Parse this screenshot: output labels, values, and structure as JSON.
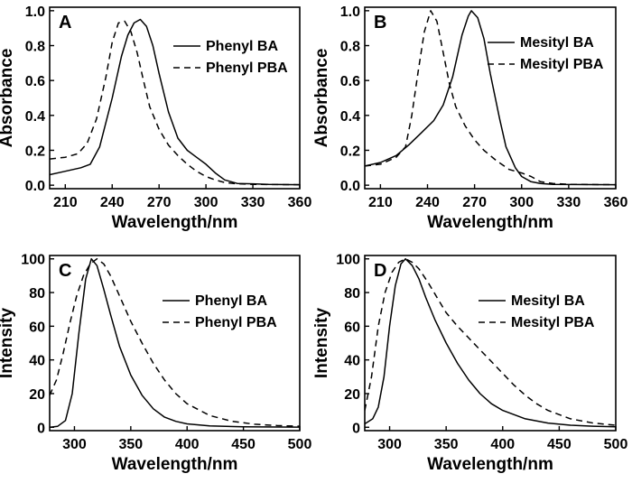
{
  "chart_data": [
    {
      "type": "line",
      "panel_label": "A",
      "xlabel": "Wavelength/nm",
      "ylabel": "Absorbance",
      "xlim": [
        200,
        360
      ],
      "ylim": [
        -0.02,
        1.02
      ],
      "xticks": [
        210,
        240,
        270,
        300,
        330,
        360
      ],
      "yticks": [
        0.0,
        0.2,
        0.4,
        0.6,
        0.8,
        1.0
      ],
      "ytick_labels": [
        "0.0",
        "0.2",
        "0.4",
        "0.6",
        "0.8",
        "1.0"
      ],
      "legend_position": "top-right",
      "series": [
        {
          "name": "Phenyl BA",
          "dash": "solid",
          "points": [
            [
              200,
              0.06
            ],
            [
              210,
              0.08
            ],
            [
              220,
              0.1
            ],
            [
              226,
              0.12
            ],
            [
              232,
              0.22
            ],
            [
              240,
              0.5
            ],
            [
              246,
              0.74
            ],
            [
              250,
              0.86
            ],
            [
              254,
              0.93
            ],
            [
              258,
              0.95
            ],
            [
              262,
              0.91
            ],
            [
              266,
              0.8
            ],
            [
              270,
              0.64
            ],
            [
              276,
              0.42
            ],
            [
              282,
              0.27
            ],
            [
              288,
              0.2
            ],
            [
              294,
              0.16
            ],
            [
              300,
              0.12
            ],
            [
              306,
              0.07
            ],
            [
              312,
              0.03
            ],
            [
              320,
              0.01
            ],
            [
              330,
              0.008
            ],
            [
              340,
              0.005
            ],
            [
              360,
              0.003
            ]
          ]
        },
        {
          "name": "Phenyl PBA",
          "dash": "dashed",
          "points": [
            [
              200,
              0.15
            ],
            [
              210,
              0.16
            ],
            [
              218,
              0.18
            ],
            [
              224,
              0.24
            ],
            [
              230,
              0.38
            ],
            [
              236,
              0.62
            ],
            [
              240,
              0.82
            ],
            [
              244,
              0.93
            ],
            [
              248,
              0.94
            ],
            [
              252,
              0.88
            ],
            [
              256,
              0.76
            ],
            [
              260,
              0.6
            ],
            [
              264,
              0.45
            ],
            [
              270,
              0.32
            ],
            [
              276,
              0.23
            ],
            [
              282,
              0.17
            ],
            [
              288,
              0.12
            ],
            [
              294,
              0.08
            ],
            [
              300,
              0.05
            ],
            [
              306,
              0.03
            ],
            [
              312,
              0.015
            ],
            [
              320,
              0.008
            ],
            [
              330,
              0.005
            ],
            [
              360,
              0.003
            ]
          ]
        }
      ]
    },
    {
      "type": "line",
      "panel_label": "B",
      "xlabel": "Wavelength/nm",
      "ylabel": "Absorbance",
      "xlim": [
        200,
        360
      ],
      "ylim": [
        -0.02,
        1.02
      ],
      "xticks": [
        210,
        240,
        270,
        300,
        330,
        360
      ],
      "yticks": [
        0.0,
        0.2,
        0.4,
        0.6,
        0.8,
        1.0
      ],
      "ytick_labels": [
        "0.0",
        "0.2",
        "0.4",
        "0.6",
        "0.8",
        "1.0"
      ],
      "legend_position": "top-right",
      "series": [
        {
          "name": "Mesityl BA",
          "dash": "solid",
          "points": [
            [
              200,
              0.11
            ],
            [
              210,
              0.13
            ],
            [
              220,
              0.17
            ],
            [
              228,
              0.23
            ],
            [
              236,
              0.3
            ],
            [
              244,
              0.37
            ],
            [
              250,
              0.46
            ],
            [
              256,
              0.62
            ],
            [
              262,
              0.86
            ],
            [
              266,
              0.97
            ],
            [
              268,
              1.0
            ],
            [
              272,
              0.96
            ],
            [
              276,
              0.84
            ],
            [
              280,
              0.64
            ],
            [
              286,
              0.38
            ],
            [
              290,
              0.22
            ],
            [
              296,
              0.1
            ],
            [
              300,
              0.05
            ],
            [
              306,
              0.02
            ],
            [
              312,
              0.01
            ],
            [
              320,
              0.005
            ],
            [
              360,
              0.003
            ]
          ]
        },
        {
          "name": "Mesityl PBA",
          "dash": "dashed",
          "points": [
            [
              200,
              0.11
            ],
            [
              210,
              0.12
            ],
            [
              220,
              0.16
            ],
            [
              226,
              0.22
            ],
            [
              230,
              0.4
            ],
            [
              234,
              0.65
            ],
            [
              238,
              0.88
            ],
            [
              242,
              1.0
            ],
            [
              246,
              0.94
            ],
            [
              250,
              0.76
            ],
            [
              254,
              0.58
            ],
            [
              258,
              0.45
            ],
            [
              264,
              0.34
            ],
            [
              270,
              0.26
            ],
            [
              276,
              0.2
            ],
            [
              284,
              0.14
            ],
            [
              292,
              0.09
            ],
            [
              300,
              0.07
            ],
            [
              306,
              0.05
            ],
            [
              312,
              0.02
            ],
            [
              320,
              0.01
            ],
            [
              330,
              0.005
            ],
            [
              360,
              0.003
            ]
          ]
        }
      ]
    },
    {
      "type": "line",
      "panel_label": "C",
      "xlabel": "Wavelength/nm",
      "ylabel": "Intensity",
      "xlim": [
        278,
        500
      ],
      "ylim": [
        -2,
        102
      ],
      "xticks": [
        300,
        350,
        400,
        450,
        500
      ],
      "yticks": [
        0,
        20,
        40,
        60,
        80,
        100
      ],
      "ytick_labels": [
        "0",
        "20",
        "40",
        "60",
        "80",
        "100"
      ],
      "legend_position": "middle-right",
      "series": [
        {
          "name": "Phenyl BA",
          "dash": "solid",
          "points": [
            [
              278,
              0
            ],
            [
              285,
              0.5
            ],
            [
              292,
              4
            ],
            [
              298,
              20
            ],
            [
              304,
              56
            ],
            [
              310,
              88
            ],
            [
              315,
              100
            ],
            [
              320,
              96
            ],
            [
              326,
              82
            ],
            [
              332,
              67
            ],
            [
              340,
              48
            ],
            [
              350,
              31
            ],
            [
              360,
              19
            ],
            [
              370,
              11
            ],
            [
              380,
              6
            ],
            [
              390,
              3.5
            ],
            [
              400,
              2
            ],
            [
              420,
              0.8
            ],
            [
              450,
              0.3
            ],
            [
              500,
              0.1
            ]
          ]
        },
        {
          "name": "Phenyl PBA",
          "dash": "dashed",
          "points": [
            [
              278,
              19
            ],
            [
              284,
              28
            ],
            [
              290,
              44
            ],
            [
              296,
              62
            ],
            [
              302,
              78
            ],
            [
              308,
              90
            ],
            [
              314,
              97
            ],
            [
              320,
              100
            ],
            [
              326,
              97
            ],
            [
              332,
              90
            ],
            [
              340,
              78
            ],
            [
              350,
              63
            ],
            [
              360,
              50
            ],
            [
              370,
              38
            ],
            [
              380,
              28
            ],
            [
              390,
              20
            ],
            [
              400,
              14
            ],
            [
              420,
              7
            ],
            [
              440,
              3.5
            ],
            [
              460,
              1.8
            ],
            [
              480,
              1
            ],
            [
              500,
              0.6
            ]
          ]
        }
      ]
    },
    {
      "type": "line",
      "panel_label": "D",
      "xlabel": "Wavelength/nm",
      "ylabel": "Intensity",
      "xlim": [
        278,
        500
      ],
      "ylim": [
        -2,
        102
      ],
      "xticks": [
        300,
        350,
        400,
        450,
        500
      ],
      "yticks": [
        0,
        20,
        40,
        60,
        80,
        100
      ],
      "ytick_labels": [
        "0",
        "20",
        "40",
        "60",
        "80",
        "100"
      ],
      "legend_position": "middle-right",
      "series": [
        {
          "name": "Mesityl BA",
          "dash": "solid",
          "points": [
            [
              278,
              2
            ],
            [
              285,
              5
            ],
            [
              290,
              12
            ],
            [
              295,
              30
            ],
            [
              300,
              60
            ],
            [
              305,
              84
            ],
            [
              310,
              97
            ],
            [
              314,
              100
            ],
            [
              320,
              96
            ],
            [
              326,
              88
            ],
            [
              332,
              77
            ],
            [
              340,
              64
            ],
            [
              350,
              50
            ],
            [
              360,
              38
            ],
            [
              370,
              28
            ],
            [
              380,
              20
            ],
            [
              390,
              14
            ],
            [
              400,
              10
            ],
            [
              420,
              5
            ],
            [
              440,
              2.5
            ],
            [
              460,
              1.2
            ],
            [
              480,
              0.6
            ],
            [
              500,
              0.3
            ]
          ]
        },
        {
          "name": "Mesityl PBA",
          "dash": "dashed",
          "points": [
            [
              278,
              10
            ],
            [
              284,
              30
            ],
            [
              290,
              60
            ],
            [
              296,
              80
            ],
            [
              302,
              92
            ],
            [
              308,
              98
            ],
            [
              314,
              100
            ],
            [
              320,
              98
            ],
            [
              326,
              94
            ],
            [
              334,
              86
            ],
            [
              342,
              77
            ],
            [
              350,
              68
            ],
            [
              360,
              60
            ],
            [
              370,
              53
            ],
            [
              380,
              46
            ],
            [
              390,
              39
            ],
            [
              400,
              32
            ],
            [
              410,
              25
            ],
            [
              420,
              19
            ],
            [
              430,
              14
            ],
            [
              440,
              10
            ],
            [
              460,
              5
            ],
            [
              480,
              2.5
            ],
            [
              500,
              1.2
            ]
          ]
        }
      ]
    }
  ]
}
